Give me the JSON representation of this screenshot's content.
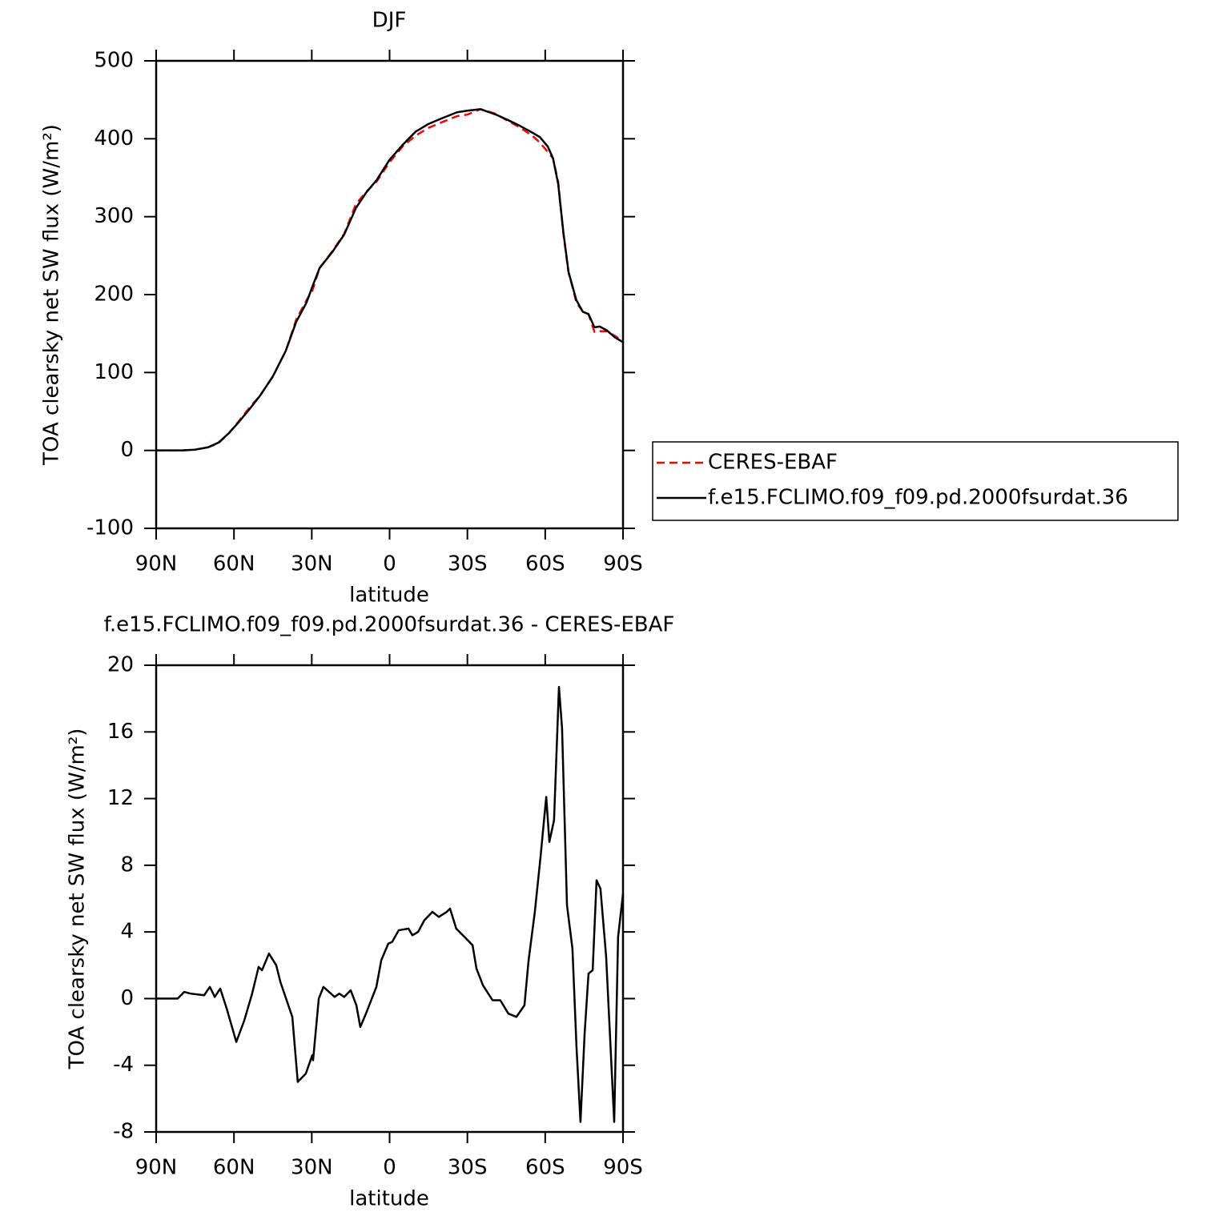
{
  "chart_data": [
    {
      "type": "line",
      "title": "DJF",
      "xlabel": "latitude",
      "ylabel": "TOA clearsky net SW flux (W/m²)",
      "x": [
        90,
        85,
        80,
        75,
        70,
        66,
        62,
        58,
        54,
        50,
        45,
        40,
        36,
        32,
        29.8,
        27,
        22,
        17.5,
        13,
        9,
        5,
        0,
        -5,
        -10,
        -15,
        -20,
        -26,
        -30,
        -35,
        -41,
        -45,
        -50,
        -55,
        -58,
        -61,
        -63,
        -65,
        -67,
        -69,
        -70.5,
        -72,
        -74.5,
        -76.7,
        -79,
        -81,
        -83.8,
        -86.9,
        -90
      ],
      "series": [
        {
          "name": "CERES-EBAF",
          "color": "#ff0000",
          "dashed": true,
          "values": [
            0,
            0,
            0,
            1,
            4,
            9,
            22,
            38,
            55,
            70,
            95,
            128,
            168,
            193,
            205,
            234,
            256,
            278,
            316,
            332,
            345,
            370,
            390,
            404,
            414,
            421,
            429,
            431,
            438,
            432,
            424,
            415,
            404,
            395,
            383,
            375,
            345,
            278,
            228,
            210,
            190,
            178,
            175,
            152,
            153,
            153,
            147,
            140
          ]
        },
        {
          "name": "f.e15.FCLIMO.f09_f09.pd.2000fsurdat.36",
          "color": "#000000",
          "dashed": false,
          "values": [
            0,
            0,
            0,
            1,
            4,
            10,
            22,
            37,
            53,
            70,
            95,
            128,
            165,
            190,
            210,
            234,
            255,
            277,
            311,
            331,
            347,
            373,
            392,
            409,
            419,
            426,
            434,
            436,
            438,
            431,
            425,
            417,
            408,
            402,
            390,
            375,
            342,
            280,
            229,
            211,
            193,
            178,
            175,
            158,
            159,
            154,
            145,
            139
          ]
        }
      ],
      "xlim": [
        90,
        -90
      ],
      "xticks": [
        {
          "value": 90,
          "label": "90N"
        },
        {
          "value": 60,
          "label": "60N"
        },
        {
          "value": 30,
          "label": "30N"
        },
        0,
        {
          "value": -30,
          "label": "30S"
        },
        {
          "value": -60,
          "label": "60S"
        },
        {
          "value": -90,
          "label": "90S"
        }
      ],
      "ylim": [
        -100,
        500
      ],
      "yticks": [
        -100,
        0,
        100,
        200,
        300,
        400,
        500
      ],
      "legend": "right"
    },
    {
      "type": "line",
      "title": "f.e15.FCLIMO.f09_f09.pd.2000fsurdat.36 - CERES-EBAF",
      "xlabel": "latitude",
      "ylabel": "TOA clearsky net SW flux (W/m²)",
      "x": [
        90,
        81.7,
        79.2,
        76.7,
        71.5,
        69.3,
        67.4,
        65.3,
        62.8,
        59.1,
        56,
        53,
        50.5,
        49.2,
        46.5,
        43.7,
        42.1,
        37.5,
        35.4,
        32.3,
        29.8,
        29.5,
        27.3,
        25.5,
        21.2,
        19.4,
        17.5,
        15,
        12.8,
        11.3,
        9.1,
        6.6,
        5.1,
        3.2,
        0.5,
        -1,
        -3.5,
        -7.3,
        -8.8,
        -11,
        -13.4,
        -16.5,
        -19,
        -22,
        -23.3,
        -25.7,
        -28.9,
        -32,
        -33.5,
        -36,
        -39.7,
        -42.7,
        -45.8,
        -48.9,
        -52,
        -53.6,
        -56,
        -58.2,
        -60.4,
        -61.6,
        -63.4,
        -65.3,
        -66.5,
        -68.4,
        -70.5,
        -72.1,
        -73.6,
        -75.2,
        -76.7,
        -78.3,
        -79.8,
        -81.3,
        -83.5,
        -86.6,
        -88.1,
        -90
      ],
      "series": [
        {
          "color": "#000000",
          "values": [
            0,
            0,
            0.4,
            0.3,
            0.2,
            0.7,
            0.1,
            0.6,
            -0.6,
            -2.6,
            -1.3,
            0.3,
            1.9,
            1.7,
            2.7,
            2,
            1,
            -1.1,
            -5,
            -4.5,
            -3.4,
            -3.7,
            0,
            0.7,
            0.1,
            0.3,
            0.1,
            0.5,
            -0.4,
            -1.7,
            -0.9,
            0.1,
            0.7,
            2.3,
            3.3,
            3.4,
            4.1,
            4.2,
            3.8,
            4,
            4.7,
            5.2,
            4.9,
            5.2,
            5.4,
            4.2,
            3.7,
            3.2,
            1.8,
            0.8,
            -0.1,
            -0.1,
            -0.9,
            -1.1,
            -0.4,
            2.3,
            5.2,
            8.5,
            12.1,
            9.4,
            10.7,
            18.7,
            16.2,
            5.6,
            3,
            -3,
            -7.4,
            -2.1,
            1.5,
            1.7,
            7.1,
            6.6,
            2.5,
            -7.4,
            3.7,
            6.3
          ]
        }
      ],
      "xlim": [
        90,
        -90
      ],
      "xticks": [
        {
          "value": 90,
          "label": "90N"
        },
        {
          "value": 60,
          "label": "60N"
        },
        {
          "value": 30,
          "label": "30N"
        },
        0,
        {
          "value": -30,
          "label": "30S"
        },
        {
          "value": -60,
          "label": "60S"
        },
        {
          "value": -90,
          "label": "90S"
        }
      ],
      "ylim": [
        -8,
        20
      ],
      "yticks": [
        -8,
        -4,
        0,
        4,
        8,
        12,
        16,
        20
      ]
    }
  ]
}
